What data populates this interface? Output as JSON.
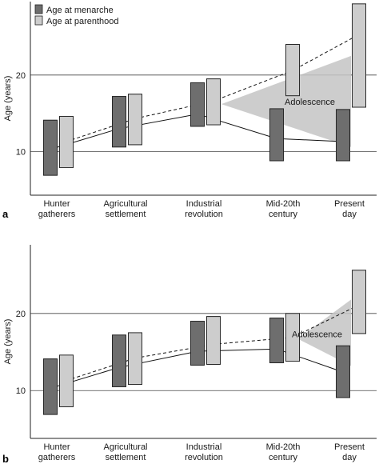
{
  "chart_data": [
    {
      "type": "range-bar",
      "panel_label": "a",
      "ylabel": "Age (years)",
      "ylim": [
        4.3,
        29.6
      ],
      "yticks": [
        10,
        20
      ],
      "grid": "horizontal",
      "categories": [
        "Hunter\ngatherers",
        "Agricultural\nsettlement",
        "Industrial\nrevolution",
        "Mid-20th\ncentury",
        "Present\nday"
      ],
      "legend": {
        "placement": "top-left",
        "entries": [
          {
            "label": "Age at menarche",
            "color": "#6e6e6e"
          },
          {
            "label": "Age at parenthood",
            "color": "#cdcdcd"
          }
        ]
      },
      "series": [
        {
          "name": "Age at menarche",
          "color": "#6e6e6e",
          "ranges": [
            [
              6.9,
              14.1
            ],
            [
              10.6,
              17.2
            ],
            [
              13.3,
              19.0
            ],
            [
              8.8,
              15.6
            ],
            [
              8.8,
              15.5
            ]
          ],
          "trend": [
            10.3,
            13.0,
            14.9,
            11.7,
            11.3
          ]
        },
        {
          "name": "Age at parenthood",
          "color": "#cdcdcd",
          "ranges": [
            [
              7.9,
              14.6
            ],
            [
              10.9,
              17.5
            ],
            [
              13.5,
              19.5
            ],
            [
              17.3,
              24.0
            ],
            [
              15.8,
              29.3
            ]
          ],
          "trend": [
            11.3,
            14.3,
            16.6,
            20.6,
            25.3
          ]
        }
      ],
      "annotation": {
        "label": "Adolescence",
        "wedge_from": [
          2.2,
          16.2
        ],
        "wedge_to": [
          4.6,
          22.5
        ],
        "wedge_to_bottom": [
          4.6,
          10.6
        ]
      }
    },
    {
      "type": "range-bar",
      "panel_label": "b",
      "ylabel": "Age (years)",
      "ylim": [
        3.8,
        28.9
      ],
      "yticks": [
        10,
        20
      ],
      "grid": "horizontal",
      "categories": [
        "Hunter\ngatherers",
        "Agricultural\nsettlement",
        "Industrial\nrevolution",
        "Mid-20th\ncentury",
        "Present\nday"
      ],
      "series": [
        {
          "name": "Age at menarche",
          "color": "#6e6e6e",
          "ranges": [
            [
              6.9,
              14.1
            ],
            [
              10.5,
              17.2
            ],
            [
              13.3,
              19.0
            ],
            [
              13.6,
              19.4
            ],
            [
              9.1,
              15.8
            ]
          ],
          "trend": [
            10.3,
            13.0,
            15.1,
            15.4,
            12.4
          ]
        },
        {
          "name": "Age at parenthood",
          "color": "#cdcdcd",
          "ranges": [
            [
              7.9,
              14.6
            ],
            [
              10.8,
              17.5
            ],
            [
              13.4,
              19.6
            ],
            [
              13.8,
              20.0
            ],
            [
              17.4,
              25.6
            ]
          ],
          "trend": [
            11.3,
            14.2,
            16.0,
            16.9,
            21.1
          ]
        }
      ],
      "annotation": {
        "label": "Adolescence",
        "wedge_from": [
          3.2,
          16.7
        ],
        "wedge_to": [
          4.3,
          21.8
        ],
        "wedge_to_bottom": [
          4.3,
          13.2
        ]
      }
    }
  ]
}
